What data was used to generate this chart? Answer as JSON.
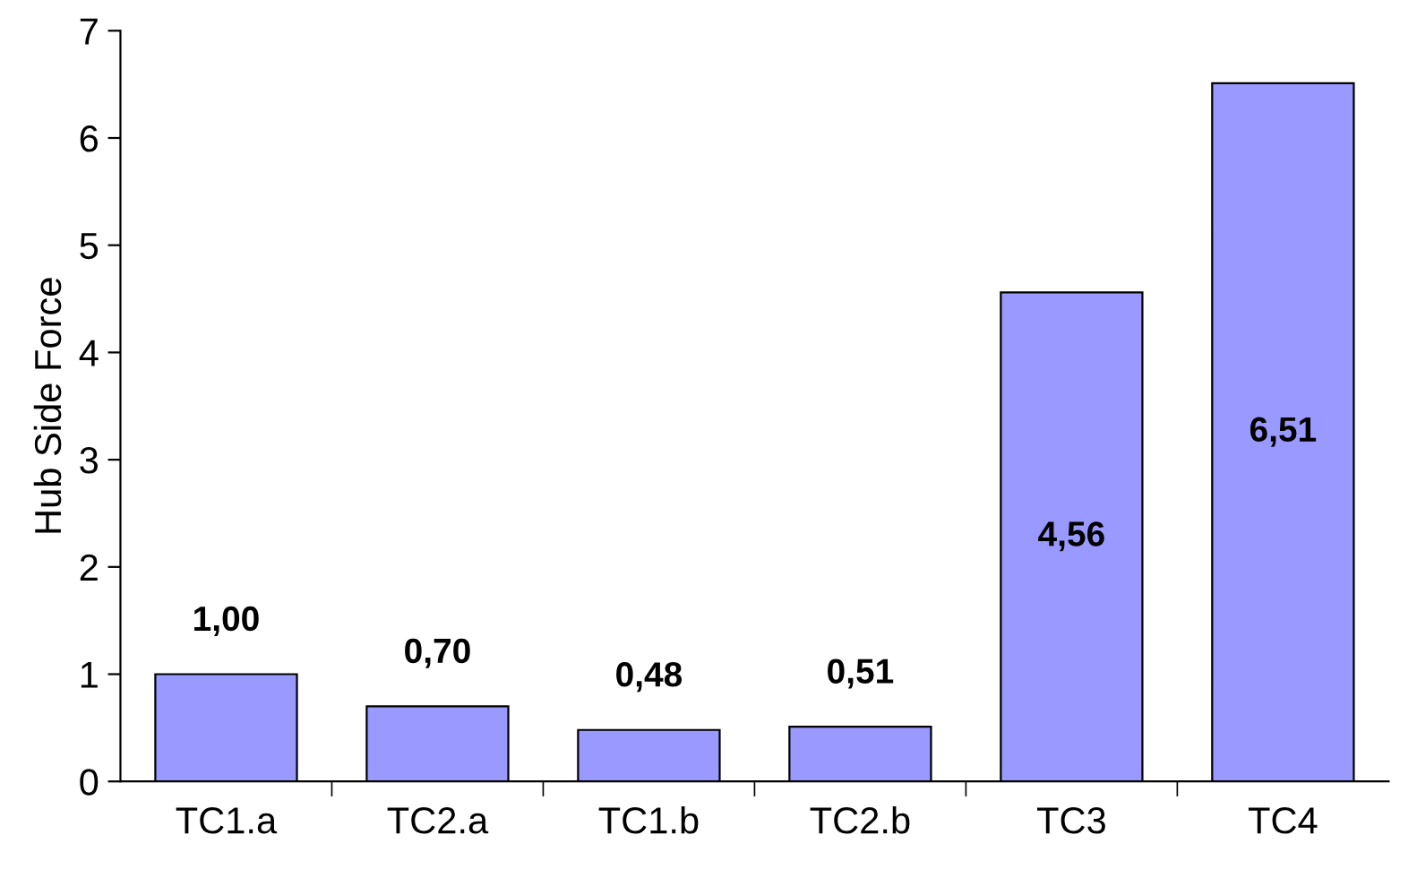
{
  "chart_data": {
    "type": "bar",
    "ylabel": "Hub Side Force",
    "categories": [
      "TC1.a",
      "TC2.a",
      "TC1.b",
      "TC2.b",
      "TC3",
      "TC4"
    ],
    "values": [
      1.0,
      0.7,
      0.48,
      0.51,
      4.56,
      6.51
    ],
    "value_labels": [
      "1,00",
      "0,70",
      "0,48",
      "0,51",
      "4,56",
      "6,51"
    ],
    "color": "#9999ff",
    "ylim": [
      0,
      7
    ],
    "yticks": [
      0,
      1,
      2,
      3,
      4,
      5,
      6,
      7
    ],
    "grid": false,
    "legend": false
  }
}
